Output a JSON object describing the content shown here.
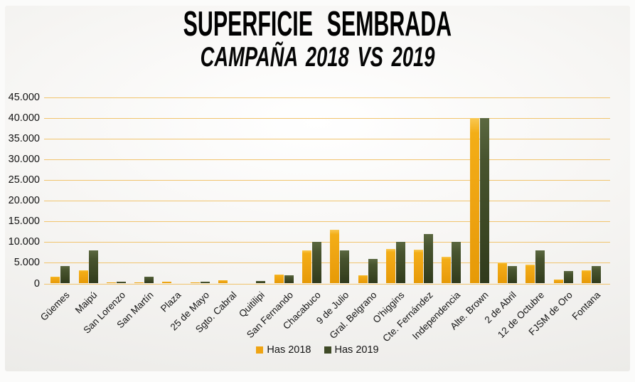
{
  "chart_data": {
    "type": "bar",
    "title": "SUPERFICIE SEMBRADA",
    "subtitle": "CAMPAÑA 2018 VS 2019",
    "categories": [
      "Güemes",
      "Maipú",
      "San Lorenzo",
      "San Martín",
      "Plaza",
      "25 de Mayo",
      "Sgto. Cabral",
      "Quitilipi",
      "San Fernando",
      "Chacabuco",
      "9 de Julio",
      "Gral. Belgrano",
      "O'higgins",
      "Cte. Fernández",
      "Independencia",
      "Alte. Brown",
      "2 de Abril",
      "12 de Octubre",
      "FJSM de Oro",
      "Fontana"
    ],
    "series": [
      {
        "name": "Has 2018",
        "color": "#efa413",
        "values": [
          1600,
          3200,
          300,
          300,
          400,
          300,
          700,
          0,
          2200,
          8000,
          13000,
          2000,
          8400,
          8200,
          6500,
          40000,
          5000,
          4600,
          1000,
          3200
        ]
      },
      {
        "name": "Has 2019",
        "color": "#3f4a27",
        "values": [
          4200,
          8000,
          500,
          1700,
          0,
          400,
          0,
          600,
          2000,
          10000,
          8000,
          6000,
          10000,
          12000,
          10000,
          40000,
          4200,
          8000,
          3000,
          4200
        ]
      }
    ],
    "ylim": [
      0,
      45000
    ],
    "ytick_step": 5000,
    "ytick_labels": [
      "0",
      "5.000",
      "10.000",
      "15.000",
      "20.000",
      "25.000",
      "30.000",
      "35.000",
      "40.000",
      "45.000"
    ],
    "grid": true,
    "gridline_color": "#f1c46e",
    "legend_position": "bottom",
    "xlabel": "",
    "ylabel": ""
  }
}
